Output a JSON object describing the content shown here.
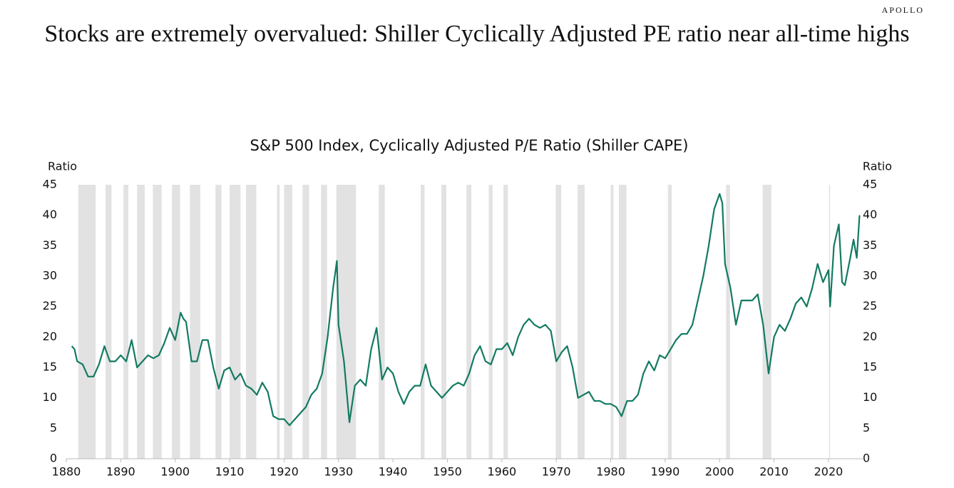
{
  "brand": "APOLLO",
  "title": "Stocks are extremely overvalued: Shiller Cyclically Adjusted PE ratio near all-time highs",
  "chart_data": {
    "type": "line",
    "title": "S&P 500 Index, Cyclically Adjusted P/E Ratio (Shiller CAPE)",
    "ylabel": "Ratio",
    "y2label": "Ratio",
    "color": "#137a62",
    "band_color": "#e2e2e2",
    "x": [
      1881,
      1881.5,
      1882,
      1883,
      1884,
      1885,
      1886,
      1887,
      1888,
      1889,
      1890,
      1891,
      1892,
      1893,
      1894,
      1895,
      1896,
      1897,
      1898,
      1899,
      1900,
      1901,
      1901.5,
      1902,
      1903,
      1904,
      1905,
      1906,
      1907,
      1908,
      1909,
      1910,
      1911,
      1912,
      1913,
      1914,
      1915,
      1916,
      1917,
      1918,
      1919,
      1920,
      1921,
      1922,
      1923,
      1924,
      1925,
      1926,
      1927,
      1928,
      1929,
      1929.7,
      1930,
      1931,
      1932,
      1932.5,
      1933,
      1934,
      1935,
      1936,
      1937,
      1938,
      1939,
      1940,
      1941,
      1942,
      1943,
      1944,
      1945,
      1946,
      1947,
      1948,
      1949,
      1950,
      1951,
      1952,
      1953,
      1954,
      1955,
      1956,
      1957,
      1958,
      1959,
      1960,
      1961,
      1962,
      1963,
      1964,
      1965,
      1966,
      1967,
      1968,
      1969,
      1970,
      1971,
      1972,
      1973,
      1974,
      1975,
      1976,
      1977,
      1978,
      1979,
      1980,
      1981,
      1982,
      1983,
      1984,
      1985,
      1986,
      1987,
      1988,
      1989,
      1990,
      1991,
      1992,
      1993,
      1994,
      1995,
      1996,
      1997,
      1998,
      1999,
      2000,
      2000.5,
      2001,
      2002,
      2003,
      2004,
      2005,
      2006,
      2007,
      2008,
      2009,
      2010,
      2011,
      2012,
      2013,
      2014,
      2015,
      2016,
      2017,
      2018,
      2019,
      2020,
      2020.3,
      2021,
      2021.9,
      2022.5,
      2023,
      2024,
      2024.6,
      2025.2,
      2025.7
    ],
    "values": [
      18.5,
      18,
      16,
      15.5,
      13.5,
      13.5,
      15.5,
      18.5,
      16,
      16,
      17,
      16,
      19.5,
      15,
      16,
      17,
      16.5,
      17,
      19,
      21.5,
      19.5,
      24,
      23,
      22.5,
      16,
      16,
      19.5,
      19.5,
      15,
      11.5,
      14.5,
      15,
      13,
      14,
      12,
      11.5,
      10.5,
      12.5,
      11,
      7,
      6.5,
      6.5,
      5.5,
      6.5,
      7.5,
      8.5,
      10.5,
      11.5,
      14,
      20,
      28,
      32.5,
      22,
      16,
      6,
      9,
      12,
      13,
      12,
      18,
      21.5,
      13,
      15,
      14,
      11,
      9,
      11,
      12,
      12,
      15.5,
      12,
      11,
      10,
      11,
      12,
      12.5,
      12,
      14,
      17,
      18.5,
      16,
      15.5,
      18,
      18,
      19,
      17,
      20,
      22,
      23,
      22,
      21.5,
      22,
      21,
      16,
      17.5,
      18.5,
      15,
      10,
      10.5,
      11,
      9.5,
      9.5,
      9,
      9,
      8.5,
      7,
      9.5,
      9.5,
      10.5,
      14,
      16,
      14.5,
      17,
      16.5,
      18,
      19.5,
      20.5,
      20.5,
      22,
      26,
      30,
      35,
      41,
      43.5,
      42,
      32,
      28,
      22,
      26,
      26,
      26,
      27,
      22,
      14,
      20,
      22,
      21,
      23,
      25.5,
      26.5,
      25,
      28,
      32,
      29,
      31,
      25,
      35,
      38.5,
      29,
      28.5,
      33,
      36,
      33,
      40
    ],
    "recessions": [
      [
        1882.2,
        1885.4
      ],
      [
        1887.2,
        1888.3
      ],
      [
        1890.5,
        1891.4
      ],
      [
        1893.0,
        1894.4
      ],
      [
        1895.9,
        1897.5
      ],
      [
        1899.4,
        1900.9
      ],
      [
        1902.7,
        1904.6
      ],
      [
        1907.4,
        1908.5
      ],
      [
        1910.0,
        1912.0
      ],
      [
        1913.0,
        1914.9
      ],
      [
        1918.7,
        1919.2
      ],
      [
        1920.0,
        1921.5
      ],
      [
        1923.4,
        1924.6
      ],
      [
        1926.8,
        1927.9
      ],
      [
        1929.6,
        1933.2
      ],
      [
        1937.4,
        1938.5
      ],
      [
        1945.1,
        1945.8
      ],
      [
        1948.9,
        1949.8
      ],
      [
        1953.5,
        1954.4
      ],
      [
        1957.6,
        1958.3
      ],
      [
        1960.3,
        1961.1
      ],
      [
        1969.9,
        1970.9
      ],
      [
        1973.9,
        1975.2
      ],
      [
        1980.0,
        1980.5
      ],
      [
        1981.5,
        1982.9
      ],
      [
        1990.5,
        1991.2
      ],
      [
        2001.2,
        2001.9
      ],
      [
        2007.9,
        2009.5
      ],
      [
        2020.1,
        2020.3
      ]
    ],
    "xlim": [
      1880,
      2026.5
    ],
    "xticks": [
      1880,
      1890,
      1900,
      1910,
      1920,
      1930,
      1940,
      1950,
      1960,
      1970,
      1980,
      1990,
      2000,
      2010,
      2020
    ],
    "ylim": [
      0,
      45
    ],
    "yticks": [
      0,
      5,
      10,
      15,
      20,
      25,
      30,
      35,
      40,
      45
    ],
    "y2lim": [
      0,
      45
    ],
    "y2ticks": [
      0,
      5,
      10,
      15,
      20,
      25,
      30,
      35,
      40,
      45
    ]
  }
}
